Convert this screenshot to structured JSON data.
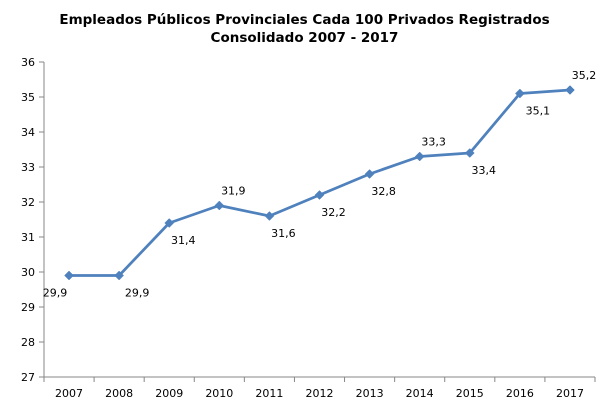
{
  "chart_data": {
    "type": "line",
    "title_lines": [
      "Empleados Públicos Provinciales Cada 100 Privados Registrados",
      "Consolidado 2007 - 2017"
    ],
    "xlabel": "",
    "ylabel": "",
    "categories": [
      "2007",
      "2008",
      "2009",
      "2010",
      "2011",
      "2012",
      "2013",
      "2014",
      "2015",
      "2016",
      "2017"
    ],
    "series": [
      {
        "values": [
          29.9,
          29.9,
          31.4,
          31.9,
          31.6,
          32.2,
          32.8,
          33.3,
          33.4,
          35.1,
          35.2
        ],
        "labels": [
          "29,9",
          "29,9",
          "31,4",
          "31,9",
          "31,6",
          "32,2",
          "32,8",
          "33,3",
          "33,4",
          "35,1",
          "35,2"
        ],
        "color": "#4F81BD",
        "marker": "diamond"
      }
    ],
    "ylim": [
      27,
      36
    ],
    "yticks": [
      "27",
      "28",
      "29",
      "30",
      "31",
      "32",
      "33",
      "34",
      "35",
      "36"
    ],
    "grid": false,
    "legend": "none"
  }
}
